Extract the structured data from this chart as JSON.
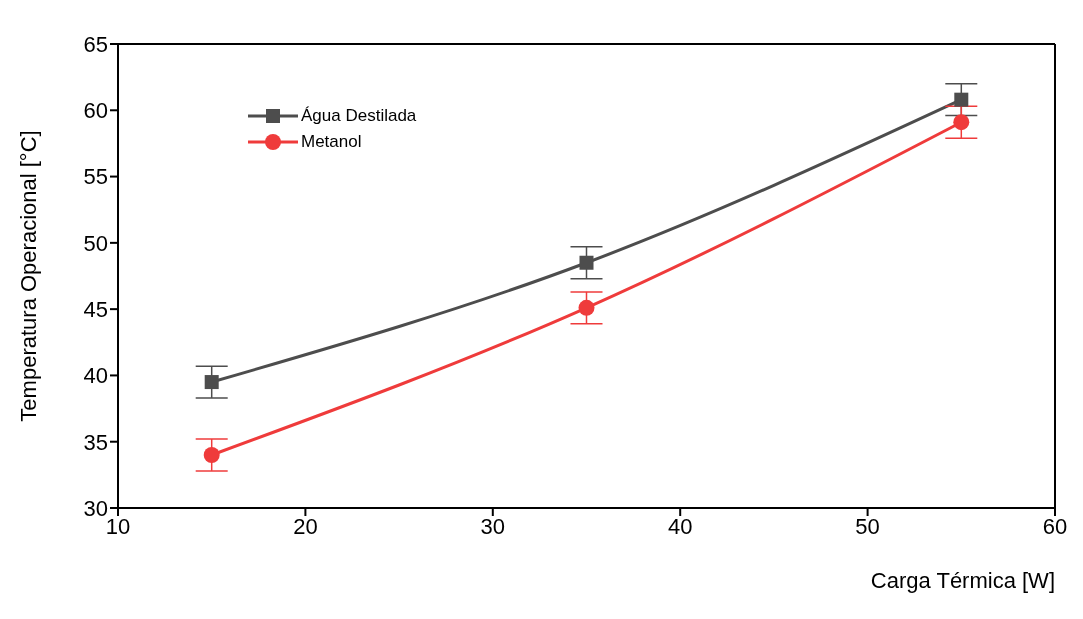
{
  "chart_data": {
    "type": "line",
    "xlabel": "Carga Térmica [W]",
    "ylabel": "Temperatura Operacional [°C]",
    "x": [
      15,
      35,
      55
    ],
    "series": [
      {
        "name": "Água Destilada",
        "color": "#4d4d4d",
        "marker": "square",
        "values": [
          39.5,
          48.5,
          60.8
        ],
        "errors": [
          1.2,
          1.2,
          1.2
        ]
      },
      {
        "name": "Metanol",
        "color": "#ef3b3b",
        "marker": "circle",
        "values": [
          34.0,
          45.1,
          59.1
        ],
        "errors": [
          1.2,
          1.2,
          1.2
        ]
      }
    ],
    "xlim": [
      10,
      60
    ],
    "xticks": [
      10,
      20,
      30,
      40,
      50,
      60
    ],
    "ylim": [
      30,
      65
    ],
    "yticks": [
      30,
      35,
      40,
      45,
      50,
      55,
      60,
      65
    ],
    "grid": false,
    "legend": "top left",
    "line_style": "solid"
  }
}
